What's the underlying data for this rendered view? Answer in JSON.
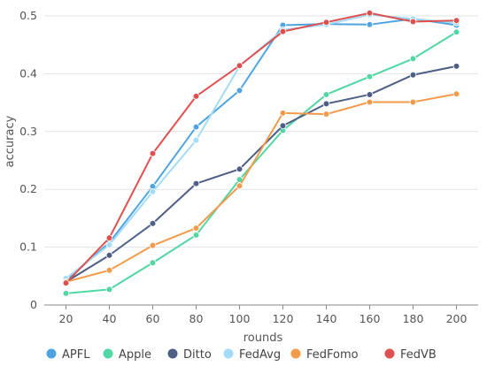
{
  "chart_data": {
    "type": "line",
    "xlabel": "rounds",
    "ylabel": "accuracy",
    "x": [
      20,
      40,
      60,
      80,
      100,
      120,
      140,
      160,
      180,
      200
    ],
    "xlim": [
      10,
      210
    ],
    "ylim": [
      0,
      0.5
    ],
    "yticks": [
      0,
      0.1,
      0.2,
      0.3,
      0.4,
      0.5
    ],
    "ytick_labels": [
      "0",
      "0.1",
      "0.2",
      "0.3",
      "0.4",
      "0.5"
    ],
    "grid": "horizontal",
    "legend_position": "bottom",
    "series": [
      {
        "name": "APFL",
        "color": "#4ea3e0",
        "values": [
          0.042,
          0.108,
          0.205,
          0.308,
          0.371,
          0.484,
          0.486,
          0.485,
          0.495,
          0.484
        ]
      },
      {
        "name": "Apple",
        "color": "#52d6a4",
        "values": [
          0.02,
          0.027,
          0.073,
          0.121,
          0.217,
          0.302,
          0.364,
          0.395,
          0.426,
          0.472
        ]
      },
      {
        "name": "Ditto",
        "color": "#4e5f85",
        "values": [
          0.04,
          0.086,
          0.141,
          0.21,
          0.235,
          0.31,
          0.348,
          0.364,
          0.398,
          0.413
        ]
      },
      {
        "name": "FedAvg",
        "color": "#a4dcf7",
        "values": [
          0.046,
          0.104,
          0.196,
          0.285,
          0.413,
          0.476,
          0.485,
          0.502,
          0.495,
          0.488
        ]
      },
      {
        "name": "FedFomo",
        "color": "#f39a4b",
        "values": [
          0.04,
          0.06,
          0.103,
          0.133,
          0.206,
          0.332,
          0.33,
          0.351,
          0.351,
          0.365
        ]
      },
      {
        "name": "FedVB",
        "color": "#de5050",
        "values": [
          0.038,
          0.116,
          0.262,
          0.361,
          0.414,
          0.473,
          0.489,
          0.505,
          0.49,
          0.492
        ]
      }
    ]
  }
}
